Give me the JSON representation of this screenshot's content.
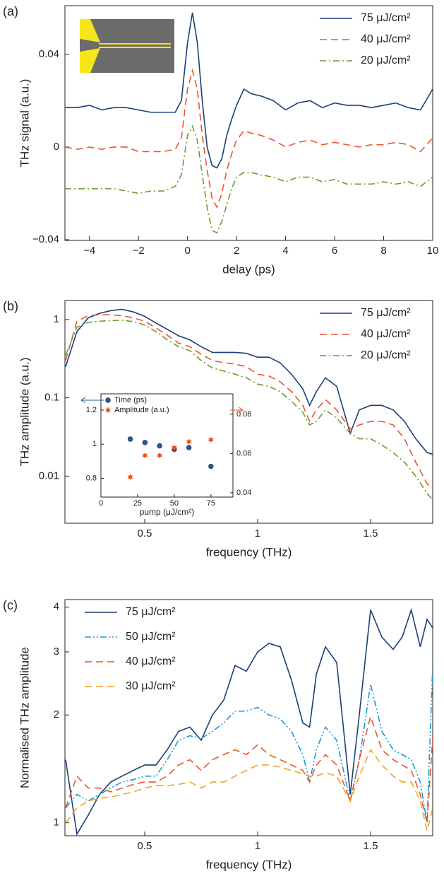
{
  "chart_data": [
    {
      "type": "line",
      "panel_label": "(a)",
      "x_label": "delay (ps)",
      "y_label": "THz signal (a.u.)",
      "legend": "upper right",
      "xlim": [
        -5,
        10
      ],
      "ylim": [
        -0.0403,
        0.061
      ],
      "xticks": [
        {
          "value": -4,
          "label": "−4"
        },
        {
          "value": -2,
          "label": "−2"
        },
        0,
        2,
        4,
        6,
        8,
        10
      ],
      "yticks": [
        {
          "value": -0.04,
          "label": "−0.04"
        },
        0,
        0.04
      ],
      "x": [
        -5,
        -4.5,
        -4,
        -3.5,
        -3,
        -2.5,
        -2,
        -1.5,
        -1,
        -0.5,
        -0.25,
        0,
        0.2,
        0.4,
        0.6,
        0.8,
        1,
        1.2,
        1.4,
        1.6,
        1.8,
        2,
        2.3,
        2.6,
        3,
        3.5,
        4,
        4.5,
        5,
        5.5,
        6,
        6.5,
        7,
        7.5,
        8,
        8.5,
        9,
        9.5,
        10
      ],
      "series": [
        {
          "name": "75 μJ/cm²",
          "color": "#1b3f7a",
          "linestyle": "solid",
          "values": [
            0.017,
            0.017,
            0.018,
            0.016,
            0.017,
            0.017,
            0.016,
            0.015,
            0.015,
            0.015,
            0.02,
            0.045,
            0.058,
            0.045,
            0.02,
            0.0,
            -0.008,
            -0.009,
            -0.005,
            0.005,
            0.012,
            0.018,
            0.025,
            0.023,
            0.022,
            0.02,
            0.016,
            0.019,
            0.02,
            0.017,
            0.019,
            0.018,
            0.018,
            0.017,
            0.018,
            0.019,
            0.017,
            0.016,
            0.025
          ]
        },
        {
          "name": "40 μJ/cm²",
          "color": "#f0522a",
          "linestyle": "dashed",
          "values": [
            0,
            -0.001,
            0,
            -0.001,
            0,
            0,
            -0.002,
            -0.002,
            -0.002,
            -0.001,
            0.004,
            0.025,
            0.033,
            0.025,
            0.005,
            -0.01,
            -0.022,
            -0.026,
            -0.02,
            -0.01,
            -0.003,
            0.003,
            0.007,
            0.006,
            0.005,
            0.003,
            0,
            0.002,
            0.003,
            0.001,
            0.002,
            0.001,
            0,
            0.001,
            0.001,
            0.002,
            0.001,
            -0.002,
            0.004
          ]
        },
        {
          "name": "20 μJ/cm²",
          "color": "#6b9a2a",
          "linestyle": "dashdot",
          "values": [
            -0.018,
            -0.018,
            -0.018,
            -0.018,
            -0.018,
            -0.019,
            -0.02,
            -0.019,
            -0.019,
            -0.017,
            -0.012,
            0.005,
            0.009,
            0.003,
            -0.012,
            -0.026,
            -0.036,
            -0.037,
            -0.032,
            -0.025,
            -0.018,
            -0.013,
            -0.011,
            -0.011,
            -0.012,
            -0.013,
            -0.015,
            -0.013,
            -0.013,
            -0.015,
            -0.014,
            -0.016,
            -0.016,
            -0.016,
            -0.015,
            -0.016,
            -0.015,
            -0.017,
            -0.013
          ]
        }
      ]
    },
    {
      "type": "line",
      "panel_label": "(b)",
      "x_label": "frequency (THz)",
      "y_label": "THz amplitude (a.u.)",
      "legend": "upper right",
      "yscale": "log",
      "xlim": [
        0.147,
        1.775
      ],
      "ylim": [
        0.0025,
        1.75
      ],
      "xticks": [
        0.5,
        1,
        1.5
      ],
      "yticks": [
        0.01,
        0.1,
        1
      ],
      "x": [
        0.15,
        0.2,
        0.25,
        0.3,
        0.35,
        0.4,
        0.45,
        0.5,
        0.55,
        0.6,
        0.65,
        0.7,
        0.75,
        0.8,
        0.85,
        0.9,
        0.95,
        1,
        1.05,
        1.1,
        1.15,
        1.2,
        1.23,
        1.26,
        1.3,
        1.35,
        1.41,
        1.45,
        1.5,
        1.55,
        1.6,
        1.65,
        1.7,
        1.75,
        1.775
      ],
      "series": [
        {
          "name": "75 μJ/cm²",
          "color": "#1b3f7a",
          "linestyle": "solid",
          "values": [
            0.25,
            0.7,
            1.05,
            1.2,
            1.3,
            1.35,
            1.25,
            1.1,
            0.9,
            0.75,
            0.62,
            0.55,
            0.45,
            0.38,
            0.38,
            0.38,
            0.37,
            0.33,
            0.33,
            0.28,
            0.2,
            0.13,
            0.08,
            0.12,
            0.18,
            0.14,
            0.035,
            0.07,
            0.08,
            0.08,
            0.07,
            0.05,
            0.03,
            0.02,
            0.019
          ]
        },
        {
          "name": "40 μJ/cm²",
          "color": "#f0522a",
          "linestyle": "dashed",
          "values": [
            0.3,
            0.95,
            1.12,
            1.15,
            1.15,
            1.12,
            1.05,
            0.95,
            0.78,
            0.63,
            0.5,
            0.45,
            0.36,
            0.3,
            0.28,
            0.27,
            0.25,
            0.2,
            0.19,
            0.16,
            0.12,
            0.08,
            0.05,
            0.07,
            0.095,
            0.07,
            0.04,
            0.045,
            0.05,
            0.05,
            0.045,
            0.03,
            0.015,
            0.008,
            0.007
          ]
        },
        {
          "name": "20 μJ/cm²",
          "color": "#6b9a2a",
          "linestyle": "dashdot",
          "values": [
            0.35,
            0.8,
            0.92,
            0.95,
            0.97,
            0.98,
            0.94,
            0.85,
            0.7,
            0.55,
            0.45,
            0.4,
            0.3,
            0.24,
            0.22,
            0.2,
            0.18,
            0.15,
            0.14,
            0.12,
            0.09,
            0.065,
            0.045,
            0.05,
            0.07,
            0.055,
            0.035,
            0.03,
            0.03,
            0.025,
            0.02,
            0.015,
            0.01,
            0.006,
            0.005
          ]
        }
      ]
    },
    {
      "type": "line",
      "panel_label": "(c)",
      "x_label": "frequency (THz)",
      "y_label": "Normalised THz amplitude",
      "legend": "upper left",
      "yscale": "log",
      "xlim": [
        0.147,
        1.775
      ],
      "ylim": [
        0.92,
        4.2
      ],
      "xticks": [
        0.5,
        1,
        1.5
      ],
      "yticks": [
        1,
        2,
        3,
        4
      ],
      "x": [
        0.15,
        0.2,
        0.25,
        0.3,
        0.35,
        0.4,
        0.45,
        0.5,
        0.55,
        0.6,
        0.65,
        0.7,
        0.75,
        0.8,
        0.85,
        0.9,
        0.95,
        1,
        1.05,
        1.1,
        1.15,
        1.2,
        1.23,
        1.26,
        1.3,
        1.35,
        1.41,
        1.45,
        1.5,
        1.55,
        1.6,
        1.64,
        1.68,
        1.72,
        1.75,
        1.775
      ],
      "series": [
        {
          "name": "75 μJ/cm²",
          "color": "#1b3f7a",
          "linestyle": "solid",
          "values": [
            1.5,
            0.93,
            1.05,
            1.2,
            1.3,
            1.35,
            1.4,
            1.45,
            1.45,
            1.6,
            1.8,
            1.85,
            1.7,
            2.0,
            2.2,
            2.75,
            2.65,
            3.0,
            3.17,
            3.1,
            2.5,
            1.9,
            1.85,
            2.6,
            3.1,
            2.8,
            1.2,
            2.0,
            3.93,
            3.3,
            3.05,
            3.3,
            3.93,
            3.1,
            3.7,
            3.5
          ]
        },
        {
          "name": "50 μJ/cm²",
          "color": "#1a9ad6",
          "linestyle": "dashdotdot",
          "values": [
            1.1,
            1.2,
            1.15,
            1.2,
            1.25,
            1.3,
            1.32,
            1.35,
            1.35,
            1.5,
            1.7,
            1.75,
            1.72,
            1.8,
            1.9,
            2.05,
            2.05,
            2.1,
            2.0,
            1.95,
            1.8,
            1.55,
            1.3,
            1.6,
            1.85,
            1.7,
            1.15,
            1.5,
            2.44,
            1.8,
            1.6,
            1.55,
            1.5,
            1.3,
            1.0,
            2.75
          ]
        },
        {
          "name": "40 μJ/cm²",
          "color": "#f0522a",
          "linestyle": "dashed",
          "values": [
            1.1,
            1.35,
            1.25,
            1.25,
            1.22,
            1.25,
            1.28,
            1.3,
            1.3,
            1.35,
            1.45,
            1.5,
            1.4,
            1.5,
            1.55,
            1.6,
            1.55,
            1.65,
            1.55,
            1.5,
            1.45,
            1.4,
            1.3,
            1.45,
            1.55,
            1.45,
            1.15,
            1.5,
            1.98,
            1.6,
            1.5,
            1.45,
            1.4,
            1.2,
            1.0,
            1.72
          ]
        },
        {
          "name": "30 μJ/cm²",
          "color": "#f7a21b",
          "linestyle": "dashed",
          "values": [
            1.0,
            1.1,
            1.15,
            1.17,
            1.18,
            1.2,
            1.22,
            1.25,
            1.27,
            1.27,
            1.28,
            1.3,
            1.25,
            1.3,
            1.3,
            1.35,
            1.4,
            1.45,
            1.45,
            1.43,
            1.4,
            1.37,
            1.35,
            1.35,
            1.38,
            1.35,
            1.15,
            1.35,
            1.6,
            1.45,
            1.35,
            1.3,
            1.3,
            1.15,
            0.95,
            1.1
          ]
        }
      ]
    },
    {
      "type": "scatter",
      "x_label": "pump (μJ/cm²)",
      "legend": "upper left",
      "xlim": [
        0,
        90
      ],
      "ylim": [
        0.69,
        1.295
      ],
      "y2lim": [
        0.0378,
        0.0904
      ],
      "xticks": [
        0,
        25,
        50,
        75
      ],
      "yticks": [
        0.8,
        1,
        1.2
      ],
      "y2ticks": [
        0.04,
        0.06,
        0.08
      ],
      "x": [
        20,
        30,
        40,
        50,
        60,
        75
      ],
      "series": [
        {
          "name": "Time (ps)",
          "color": "#2a5a9a",
          "marker": "circle",
          "values": [
            1.03,
            1.01,
            0.99,
            0.97,
            0.98,
            0.87
          ]
        },
        {
          "name": "Amplitude (a.u.)",
          "color": "#ef4a1e",
          "marker": "star",
          "axis": "y2",
          "values": [
            0.048,
            0.059,
            0.059,
            0.063,
            0.066,
            0.067
          ]
        }
      ]
    }
  ]
}
